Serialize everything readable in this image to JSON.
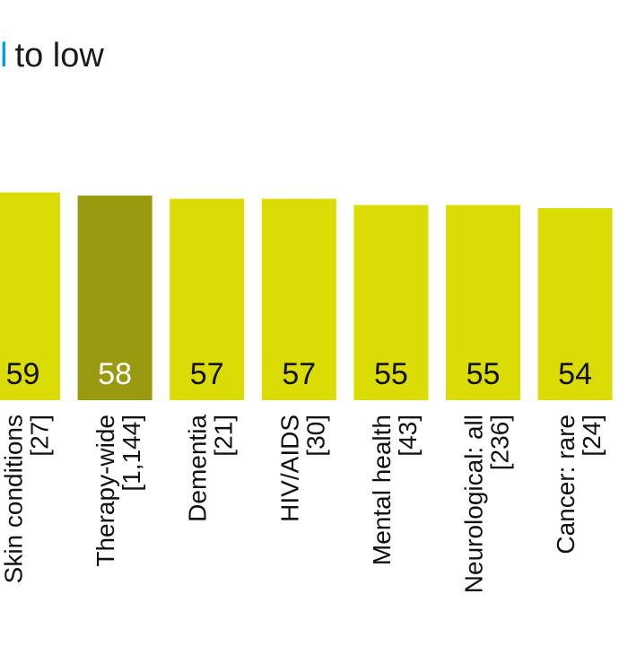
{
  "title": {
    "accent_char": "h",
    "text": "to low"
  },
  "colors": {
    "bar_default": "#dbdb06",
    "bar_highlight": "#9a9a10",
    "label_on_default": "#111111",
    "label_on_highlight": "#ffffff",
    "category_text": "#111111",
    "title_accent": "#00a3d9"
  },
  "chart_data": {
    "type": "bar",
    "orientation": "vertical",
    "sort_order": "high to low",
    "highlighted_category": "Therapy-wide",
    "categories": [
      {
        "name": "Skin conditions",
        "count": "[27]",
        "value": 59
      },
      {
        "name": "Therapy-wide",
        "count": "[1,144]",
        "value": 58
      },
      {
        "name": "Dementia",
        "count": "[21]",
        "value": 57
      },
      {
        "name": "HIV/AIDS",
        "count": "[30]",
        "value": 57
      },
      {
        "name": "Mental health",
        "count": "[43]",
        "value": 55
      },
      {
        "name": "Neurological: all",
        "count": "[236]",
        "value": 55
      },
      {
        "name": "Cancer: rare",
        "count": "[24]",
        "value": 54
      }
    ],
    "values": [
      59,
      58,
      57,
      57,
      55,
      55,
      54
    ],
    "data_labels": true,
    "grid": false
  }
}
